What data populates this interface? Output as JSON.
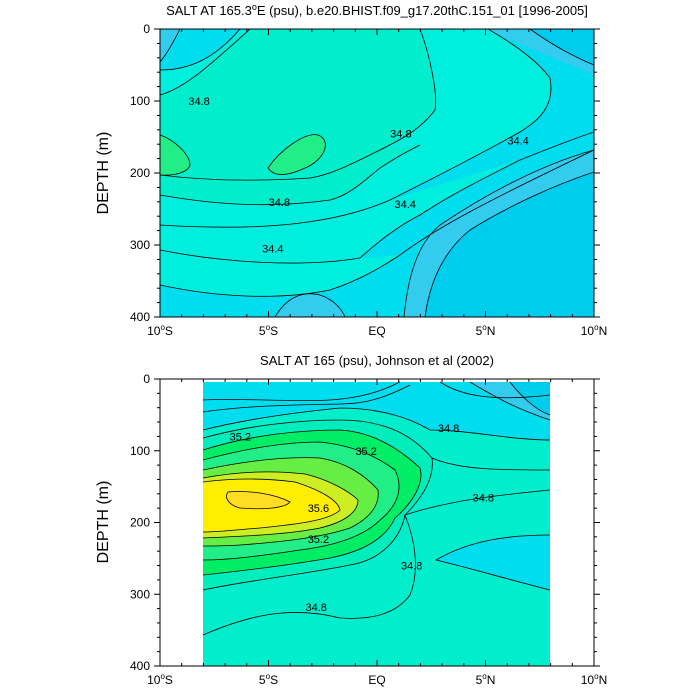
{
  "chart_data": [
    {
      "type": "contour",
      "title": "SALT AT 165.3°E (psu), b.e20.BHIST.f09_g17.20thC.151_01 [1996-2005]",
      "title_parts": {
        "pre": "SALT AT 165.3",
        "deg": "o",
        "post": "E (psu), b.e20.BHIST.f09_g17.20thC.151_01 [1996-2005]"
      },
      "ylabel": "DEPTH (m)",
      "xlim": [
        -10,
        10
      ],
      "ylim": [
        0,
        400
      ],
      "y_inverted": true,
      "x_ticks": [
        {
          "value": -10,
          "num": "10",
          "deg": "o",
          "hemi": "S"
        },
        {
          "value": -5,
          "num": "5",
          "deg": "o",
          "hemi": "S"
        },
        {
          "value": 0,
          "num": "EQ",
          "deg": "",
          "hemi": ""
        },
        {
          "value": 5,
          "num": "5",
          "deg": "o",
          "hemi": "N"
        },
        {
          "value": 10,
          "num": "10",
          "deg": "o",
          "hemi": "N"
        }
      ],
      "y_ticks": [
        "0",
        "100",
        "200",
        "300",
        "400"
      ],
      "y_tick_values": [
        0,
        100,
        200,
        300,
        400
      ],
      "contour_interval": 0.2,
      "data_extent_x": [
        -10,
        10
      ],
      "contour_labels": [
        {
          "text": "34.8",
          "x": -8.2,
          "y": 100
        },
        {
          "text": "34.8",
          "x": 1.1,
          "y": 145
        },
        {
          "text": "34.4",
          "x": 6.5,
          "y": 155
        },
        {
          "text": "34.8",
          "x": -4.5,
          "y": 240
        },
        {
          "text": "34.4",
          "x": 1.3,
          "y": 243
        },
        {
          "text": "34.4",
          "x": -4.8,
          "y": 305
        }
      ]
    },
    {
      "type": "contour",
      "title": "SALT AT 165 (psu), Johnson et al (2002)",
      "title_parts": {
        "pre": "SALT AT 165 (psu), Johnson et al (2002)",
        "deg": "",
        "post": ""
      },
      "ylabel": "DEPTH (m)",
      "xlim": [
        -10,
        10
      ],
      "ylim": [
        0,
        400
      ],
      "y_inverted": true,
      "x_ticks": [
        {
          "value": -10,
          "num": "10",
          "deg": "o",
          "hemi": "S"
        },
        {
          "value": -5,
          "num": "5",
          "deg": "o",
          "hemi": "S"
        },
        {
          "value": 0,
          "num": "EQ",
          "deg": "",
          "hemi": ""
        },
        {
          "value": 5,
          "num": "5",
          "deg": "o",
          "hemi": "N"
        },
        {
          "value": 10,
          "num": "10",
          "deg": "o",
          "hemi": "N"
        }
      ],
      "y_ticks": [
        "0",
        "100",
        "200",
        "300",
        "400"
      ],
      "y_tick_values": [
        0,
        100,
        200,
        300,
        400
      ],
      "contour_interval": 0.2,
      "data_extent_x": [
        -8,
        8
      ],
      "contour_labels": [
        {
          "text": "35.2",
          "x": -6.3,
          "y": 80
        },
        {
          "text": "35.2",
          "x": -0.5,
          "y": 100
        },
        {
          "text": "34.8",
          "x": 3.3,
          "y": 68
        },
        {
          "text": "35.6",
          "x": -2.7,
          "y": 180
        },
        {
          "text": "34.8",
          "x": 4.9,
          "y": 165
        },
        {
          "text": "35.2",
          "x": -2.7,
          "y": 223
        },
        {
          "text": "34.8",
          "x": 1.6,
          "y": 260
        },
        {
          "text": "34.8",
          "x": -2.8,
          "y": 318
        }
      ]
    }
  ]
}
